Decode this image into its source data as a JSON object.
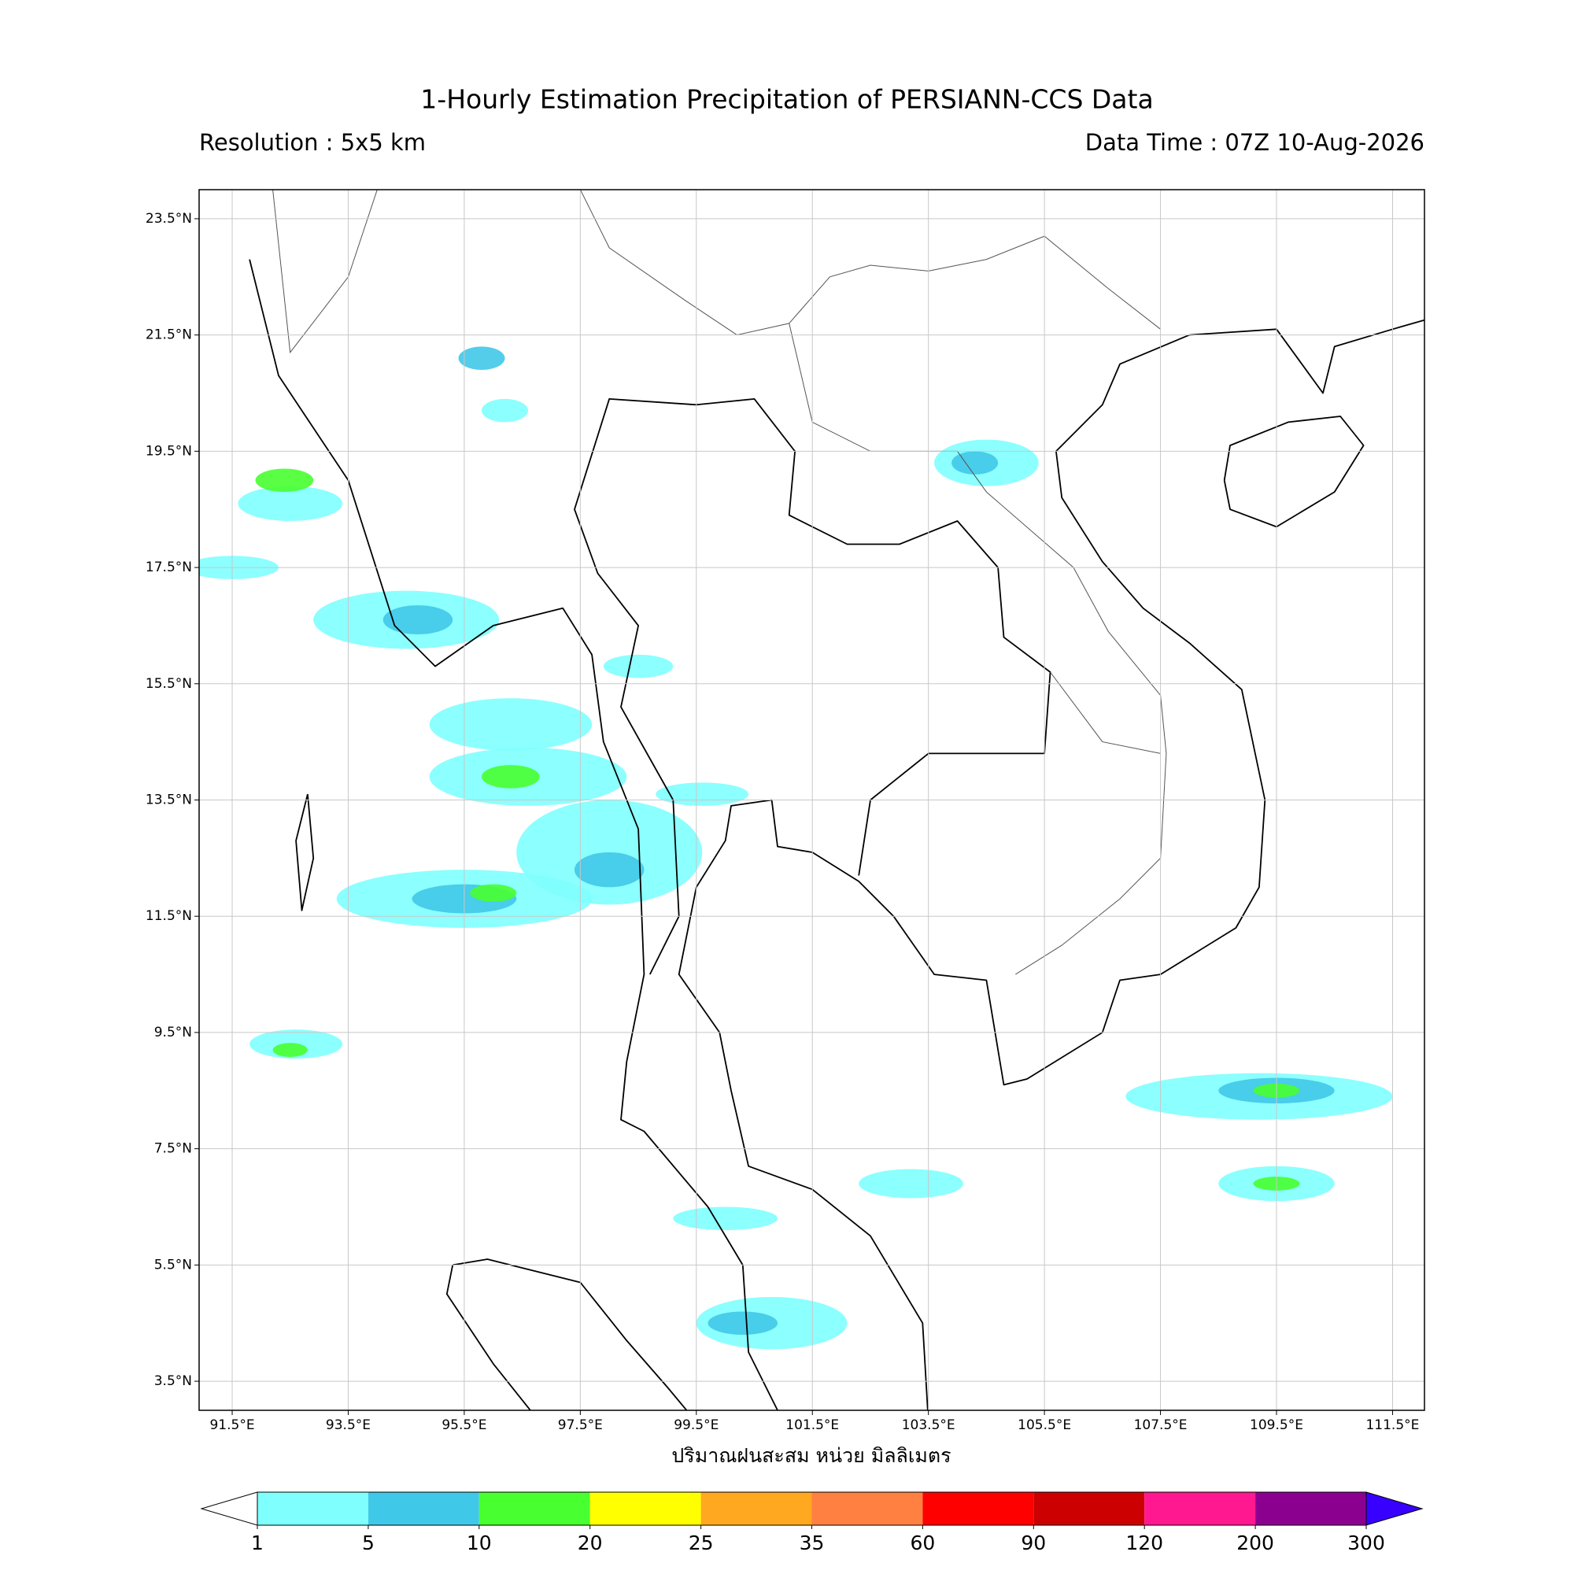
{
  "chart_data": {
    "type": "map",
    "title": "1-Hourly Estimation Precipitation of PERSIANN-CCS Data",
    "subtitle_left": "Resolution : 5x5 km",
    "subtitle_right": "Data Time : 07Z 10-Aug-2026",
    "xlabel": "ปริมาณฝนสะสม หน่วย มิลลิเมตร",
    "xlim": [
      90.93,
      112.05
    ],
    "ylim": [
      3,
      24
    ],
    "xticks": [
      {
        "value": 91.5,
        "label": "91.5°E"
      },
      {
        "value": 93.5,
        "label": "93.5°E"
      },
      {
        "value": 95.5,
        "label": "95.5°E"
      },
      {
        "value": 97.5,
        "label": "97.5°E"
      },
      {
        "value": 99.5,
        "label": "99.5°E"
      },
      {
        "value": 101.5,
        "label": "101.5°E"
      },
      {
        "value": 103.5,
        "label": "103.5°E"
      },
      {
        "value": 105.5,
        "label": "105.5°E"
      },
      {
        "value": 107.5,
        "label": "107.5°E"
      },
      {
        "value": 109.5,
        "label": "109.5°E"
      },
      {
        "value": 111.5,
        "label": "111.5°E"
      }
    ],
    "yticks": [
      {
        "value": 3.5,
        "label": "3.5°N"
      },
      {
        "value": 5.5,
        "label": "5.5°N"
      },
      {
        "value": 7.5,
        "label": "7.5°N"
      },
      {
        "value": 9.5,
        "label": "9.5°N"
      },
      {
        "value": 11.5,
        "label": "11.5°N"
      },
      {
        "value": 13.5,
        "label": "13.5°N"
      },
      {
        "value": 15.5,
        "label": "15.5°N"
      },
      {
        "value": 17.5,
        "label": "17.5°N"
      },
      {
        "value": 19.5,
        "label": "19.5°N"
      },
      {
        "value": 21.5,
        "label": "21.5°N"
      },
      {
        "value": 23.5,
        "label": "23.5°N"
      }
    ],
    "grid": true,
    "colorbar": {
      "bounds": [
        1,
        5,
        10,
        20,
        25,
        35,
        60,
        90,
        120,
        200,
        300
      ],
      "colors": [
        "#80ffff",
        "#40c8e8",
        "#48ff30",
        "#ffff00",
        "#ffa820",
        "#ff8040",
        "#ff0000",
        "#cc0000",
        "#ff1890",
        "#8c0090"
      ],
      "under_color": "#ffffff",
      "over_color": "#3800ff"
    }
  }
}
